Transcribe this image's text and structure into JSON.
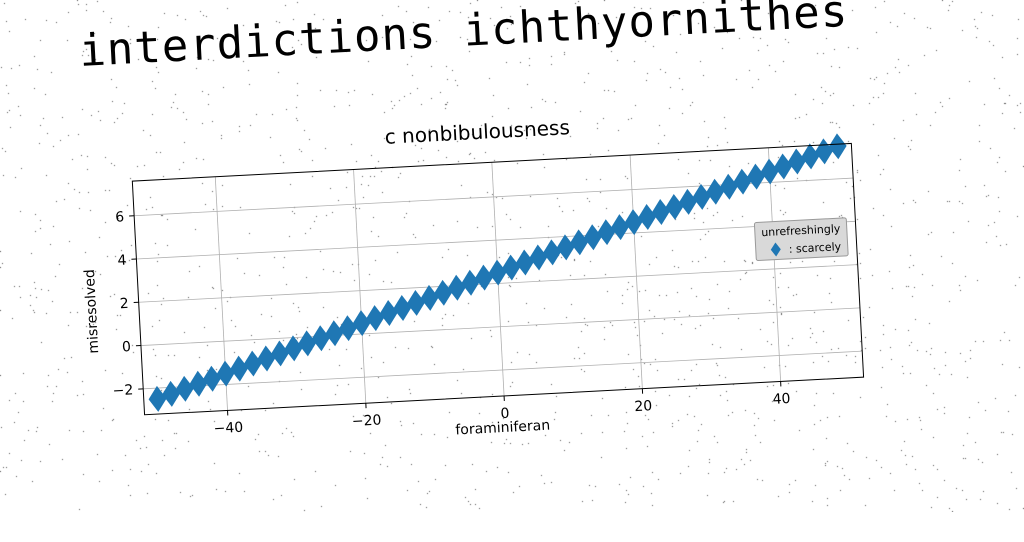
{
  "headline": "interdictions ichthyornithes",
  "chart_data": {
    "type": "scatter",
    "title": "c nonbibulousness",
    "xlabel": "foraminiferan",
    "ylabel": "misresolved",
    "xlim": [
      -52,
      52
    ],
    "ylim": [
      -3.2,
      7.6
    ],
    "xticks": [
      -40,
      -20,
      0,
      20,
      40
    ],
    "yticks": [
      -2,
      0,
      2,
      4,
      6
    ],
    "xtick_labels": [
      "−40",
      "−20",
      "0",
      "20",
      "40"
    ],
    "ytick_labels": [
      "−2",
      "0",
      "2",
      "4",
      "6"
    ],
    "grid": true,
    "legend": {
      "title": "unrefreshingly",
      "placement": "center-right",
      "entries": [
        {
          "label": ": scarcely",
          "color": "#1f77b4",
          "marker": "diamond"
        }
      ]
    },
    "series": [
      {
        "name": ": scarcely",
        "color": "#1f77b4",
        "marker": "diamond",
        "x": [
          -50,
          -48,
          -46,
          -44,
          -42,
          -40,
          -38,
          -36,
          -34,
          -32,
          -30,
          -28,
          -26,
          -24,
          -22,
          -20,
          -18,
          -16,
          -14,
          -12,
          -10,
          -8,
          -6,
          -4,
          -2,
          0,
          2,
          4,
          6,
          8,
          10,
          12,
          14,
          16,
          18,
          20,
          22,
          24,
          26,
          28,
          30,
          32,
          34,
          36,
          38,
          40,
          42,
          44,
          46,
          48,
          50
        ],
        "y": [
          -2.5,
          -2.3,
          -2.1,
          -1.9,
          -1.7,
          -1.5,
          -1.3,
          -1.1,
          -0.9,
          -0.7,
          -0.5,
          -0.3,
          -0.1,
          0.1,
          0.3,
          0.5,
          0.7,
          0.9,
          1.1,
          1.3,
          1.5,
          1.7,
          1.9,
          2.1,
          2.3,
          2.5,
          2.7,
          2.9,
          3.1,
          3.3,
          3.5,
          3.7,
          3.9,
          4.1,
          4.3,
          4.5,
          4.7,
          4.9,
          5.1,
          5.3,
          5.5,
          5.7,
          5.9,
          6.1,
          6.3,
          6.5,
          6.7,
          6.9,
          7.1,
          7.3,
          7.5
        ]
      }
    ]
  }
}
